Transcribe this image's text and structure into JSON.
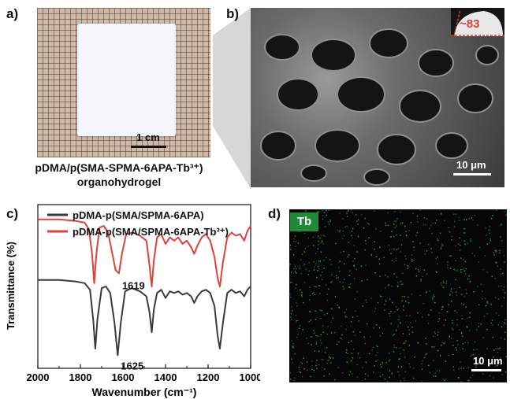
{
  "panel_a": {
    "label": "a)",
    "scale_label": "1 cm",
    "caption_line1": "pDMA/p(SMA-SPMA-6APA-Tb³⁺)",
    "caption_line2": "organohydrogel"
  },
  "panel_b": {
    "label": "b)",
    "contact_angle": "~83",
    "scale_label": "10 μm"
  },
  "panel_c": {
    "label": "c)"
  },
  "panel_d": {
    "label": "d)",
    "element_tag": "Tb",
    "scale_label": "10 μm"
  },
  "colors": {
    "black_series": "#3a3a3a",
    "red_series": "#e0403a",
    "tb_green": "#1f8a3a"
  },
  "chart_data": {
    "type": "line",
    "xlabel": "Wavenumber (cm⁻¹)",
    "ylabel": "Transmittance (%)",
    "xlim": [
      2000,
      1000
    ],
    "x_reversed": true,
    "x_ticks": [
      "2000",
      "1800",
      "1600",
      "1400",
      "1200",
      "1000"
    ],
    "y_ticks_shown": false,
    "legend_position": "top",
    "annotations": [
      {
        "text": "1619",
        "x": 1619,
        "series": "pDMA-p(SMA/SPMA-6APA-Tb³⁺)"
      },
      {
        "text": "1625",
        "x": 1625,
        "series": "pDMA-p(SMA/SPMA-6APA)"
      }
    ],
    "series": [
      {
        "name": "pDMA-p(SMA/SPMA-6APA)",
        "color": "#3a3a3a",
        "x": [
          2000,
          1900,
          1820,
          1780,
          1755,
          1740,
          1730,
          1720,
          1700,
          1680,
          1660,
          1640,
          1625,
          1610,
          1590,
          1560,
          1520,
          1490,
          1475,
          1465,
          1455,
          1440,
          1420,
          1400,
          1380,
          1360,
          1340,
          1320,
          1300,
          1280,
          1265,
          1250,
          1230,
          1210,
          1190,
          1170,
          1155,
          1145,
          1130,
          1110,
          1090,
          1070,
          1050,
          1030,
          1015,
          1000
        ],
        "y": [
          84,
          84,
          83,
          82,
          78,
          60,
          42,
          60,
          79,
          80,
          76,
          58,
          38,
          58,
          77,
          79,
          77,
          74,
          64,
          52,
          66,
          76,
          78,
          73,
          77,
          76,
          77,
          75,
          76,
          74,
          70,
          74,
          77,
          78,
          76,
          68,
          50,
          42,
          58,
          76,
          78,
          76,
          77,
          74,
          78,
          80
        ]
      },
      {
        "name": "pDMA-p(SMA/SPMA-6APA-Tb³⁺)",
        "color": "#e0403a",
        "x": [
          2000,
          1900,
          1820,
          1780,
          1760,
          1745,
          1735,
          1725,
          1710,
          1690,
          1670,
          1650,
          1635,
          1619,
          1605,
          1585,
          1555,
          1520,
          1490,
          1478,
          1465,
          1455,
          1440,
          1420,
          1400,
          1380,
          1360,
          1340,
          1320,
          1300,
          1280,
          1265,
          1250,
          1230,
          1210,
          1190,
          1170,
          1155,
          1145,
          1130,
          1110,
          1090,
          1070,
          1050,
          1030,
          1015,
          1000
        ],
        "y": [
          121,
          121,
          120,
          119,
          115,
          100,
          82,
          100,
          116,
          117,
          113,
          100,
          90,
          88,
          100,
          112,
          113,
          111,
          108,
          96,
          80,
          96,
          110,
          112,
          106,
          110,
          108,
          110,
          106,
          108,
          104,
          100,
          105,
          110,
          112,
          108,
          98,
          85,
          80,
          95,
          110,
          113,
          111,
          112,
          108,
          114,
          117
        ]
      }
    ]
  }
}
